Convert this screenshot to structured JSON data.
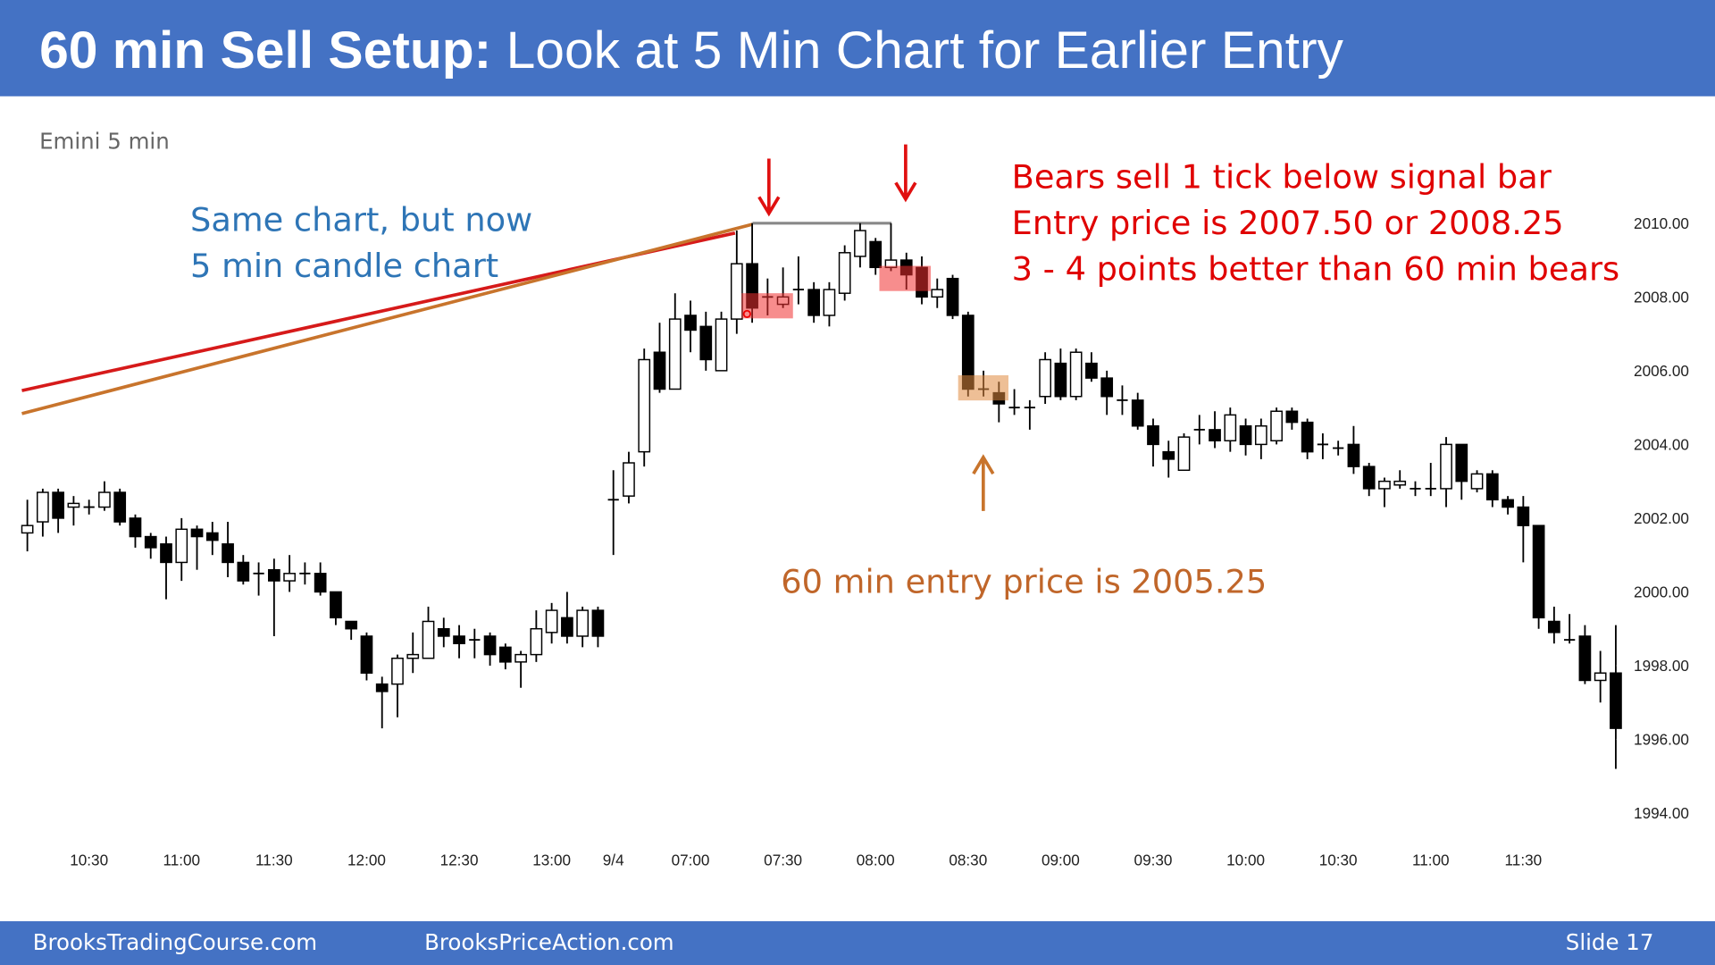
{
  "header": {
    "title_bold": "60 min Sell Setup:",
    "title_rest": "Look at 5 Min Chart for Earlier Entry"
  },
  "footer": {
    "left": "BrooksTradingCourse.com",
    "middle": "BrooksPriceAction.com",
    "right": "Slide  17"
  },
  "chart_data": {
    "type": "candlestick",
    "label": "Emini 5 min",
    "annotations": {
      "blue": [
        "Same chart, but now",
        "5 min candle chart"
      ],
      "red": [
        "Bears sell 1 tick below signal bar",
        "Entry price is 2007.50 or 2008.25",
        "3 - 4 points better than 60 min bears"
      ],
      "orange": "60 min entry price is 2005.25"
    },
    "categories": [
      null,
      null,
      null,
      null,
      "10:30",
      null,
      null,
      null,
      null,
      null,
      "11:00",
      null,
      null,
      null,
      null,
      null,
      "11:30",
      null,
      null,
      null,
      null,
      null,
      "12:00",
      null,
      null,
      null,
      null,
      null,
      "12:30",
      null,
      null,
      null,
      null,
      null,
      "13:00",
      null,
      null,
      null,
      "9/4",
      null,
      null,
      null,
      null,
      "07:00",
      null,
      null,
      null,
      null,
      null,
      "07:30",
      null,
      null,
      null,
      null,
      null,
      "08:00",
      null,
      null,
      null,
      null,
      null,
      "08:30",
      null,
      null,
      null,
      null,
      null,
      "09:00",
      null,
      null,
      null,
      null,
      null,
      "09:30",
      null,
      null,
      null,
      null,
      null,
      "10:00",
      null,
      null,
      null,
      null,
      null,
      "10:30",
      null,
      null,
      null,
      null,
      null,
      "11:00",
      null,
      null,
      null,
      null,
      null,
      "11:30",
      null,
      null,
      null,
      null,
      null,
      null
    ],
    "open": [
      2001.6,
      2001.9,
      2002.7,
      2002.3,
      2002.3,
      2002.3,
      2002.7,
      2002.0,
      2001.5,
      2001.3,
      2000.8,
      2001.7,
      2001.6,
      2001.3,
      2000.8,
      2000.5,
      2000.6,
      2000.3,
      2000.5,
      2000.5,
      2000.0,
      1999.2,
      1998.8,
      1997.5,
      1997.5,
      1998.2,
      1998.2,
      1999.0,
      1998.8,
      1998.7,
      1998.8,
      1998.5,
      1998.1,
      1998.3,
      1998.9,
      1999.3,
      1998.8,
      1999.5,
      2002.5,
      2002.6,
      2003.8,
      2006.5,
      2005.5,
      2007.5,
      2007.2,
      2006.0,
      2007.4,
      2008.9,
      2008.0,
      2007.8,
      2008.2,
      2008.2,
      2007.5,
      2008.1,
      2009.1,
      2009.5,
      2008.8,
      2009.0,
      2008.8,
      2008.0,
      2008.5,
      2007.5,
      2005.5,
      2005.4,
      2005.0,
      2005.0,
      2005.3,
      2006.2,
      2005.3,
      2006.2,
      2005.8,
      2005.2,
      2005.2,
      2004.5,
      2003.8,
      2003.3,
      2004.4,
      2004.4,
      2004.1,
      2004.5,
      2004.0,
      2004.1,
      2004.9,
      2004.6,
      2004.0,
      2003.9,
      2004.0,
      2003.4,
      2002.8,
      2002.9,
      2002.8,
      2002.8,
      2002.8,
      2004.0,
      2002.8,
      2003.2,
      2002.5,
      2002.3,
      2001.8,
      1999.2,
      1998.7,
      1998.8,
      1997.6,
      1997.8
    ],
    "high": [
      2002.5,
      2002.8,
      2002.8,
      2002.6,
      2002.5,
      2003.0,
      2002.8,
      2002.1,
      2001.6,
      2001.5,
      2002.0,
      2001.8,
      2001.9,
      2001.9,
      2001.0,
      2000.8,
      2000.9,
      2001.0,
      2000.8,
      2000.8,
      2000.0,
      1999.2,
      1998.9,
      1997.7,
      1998.3,
      1998.9,
      1999.6,
      1999.3,
      1999.1,
      1999.0,
      1998.9,
      1998.6,
      1998.4,
      1999.5,
      1999.7,
      2000.0,
      1999.6,
      1999.6,
      2003.3,
      2003.8,
      2006.6,
      2007.3,
      2008.1,
      2007.9,
      2007.6,
      2007.6,
      2009.8,
      2010.0,
      2008.5,
      2008.8,
      2009.1,
      2008.4,
      2008.4,
      2009.4,
      2010.0,
      2009.6,
      2010.0,
      2009.2,
      2009.1,
      2008.5,
      2008.6,
      2007.6,
      2006.0,
      2005.7,
      2005.5,
      2005.2,
      2006.5,
      2006.6,
      2006.6,
      2006.5,
      2006.0,
      2005.6,
      2005.4,
      2004.7,
      2004.1,
      2004.3,
      2004.8,
      2004.9,
      2005.0,
      2004.7,
      2004.7,
      2005.0,
      2005.0,
      2004.7,
      2004.3,
      2004.1,
      2004.5,
      2003.5,
      2003.1,
      2003.3,
      2003.0,
      2003.5,
      2004.2,
      2004.0,
      2003.3,
      2003.3,
      2002.6,
      2002.6,
      2001.8,
      1999.6,
      1999.4,
      1999.1,
      1998.4,
      1999.1
    ],
    "low": [
      2001.1,
      2001.5,
      2001.6,
      2001.8,
      2002.1,
      2002.2,
      2001.8,
      2001.2,
      2000.9,
      1999.8,
      2000.3,
      2000.6,
      2001.0,
      2000.4,
      2000.2,
      1999.9,
      1998.8,
      2000.0,
      2000.2,
      1999.9,
      1999.1,
      1998.7,
      1997.6,
      1996.3,
      1996.6,
      1997.8,
      1998.2,
      1998.5,
      1998.2,
      1998.2,
      1998.0,
      1997.9,
      1997.4,
      1998.1,
      1998.6,
      1998.6,
      1998.5,
      1998.5,
      2001.0,
      2002.4,
      2003.4,
      2005.4,
      2005.5,
      2006.5,
      2006.0,
      2006.0,
      2007.0,
      2007.3,
      2007.5,
      2007.7,
      2007.8,
      2007.3,
      2007.2,
      2007.9,
      2008.8,
      2008.6,
      2008.7,
      2008.2,
      2007.8,
      2007.7,
      2007.4,
      2005.3,
      2005.3,
      2004.6,
      2004.8,
      2004.4,
      2005.1,
      2005.2,
      2005.2,
      2005.7,
      2004.8,
      2004.8,
      2004.4,
      2003.4,
      2003.1,
      2003.3,
      2004.0,
      2003.9,
      2003.8,
      2003.7,
      2003.6,
      2004.0,
      2004.4,
      2003.6,
      2003.6,
      2003.7,
      2003.2,
      2002.6,
      2002.3,
      2002.8,
      2002.6,
      2002.6,
      2002.3,
      2002.5,
      2002.7,
      2002.3,
      2002.1,
      2000.8,
      1999.0,
      1998.6,
      1998.6,
      1997.5,
      1997.0,
      1995.2
    ],
    "close": [
      2001.8,
      2002.7,
      2002.0,
      2002.4,
      2002.3,
      2002.7,
      2001.9,
      2001.5,
      2001.2,
      2000.8,
      2001.7,
      2001.5,
      2001.4,
      2000.8,
      2000.3,
      2000.5,
      2000.3,
      2000.5,
      2000.5,
      2000.0,
      1999.3,
      1999.0,
      1997.8,
      1997.3,
      1998.2,
      1998.3,
      1999.2,
      1998.8,
      1998.6,
      1998.7,
      1998.3,
      1998.1,
      1998.3,
      1999.0,
      1999.5,
      1998.8,
      1999.5,
      1998.8,
      2002.5,
      2003.5,
      2006.3,
      2005.5,
      2007.4,
      2007.1,
      2006.3,
      2007.4,
      2008.9,
      2007.7,
      2008.0,
      2008.0,
      2008.2,
      2007.5,
      2008.2,
      2009.2,
      2009.8,
      2008.8,
      2009.0,
      2008.6,
      2008.0,
      2008.2,
      2007.5,
      2005.5,
      2005.5,
      2005.1,
      2005.0,
      2005.0,
      2006.3,
      2005.3,
      2006.5,
      2005.8,
      2005.3,
      2005.2,
      2004.5,
      2004.0,
      2003.6,
      2004.2,
      2004.4,
      2004.1,
      2004.8,
      2004.0,
      2004.5,
      2004.9,
      2004.6,
      2003.8,
      2004.0,
      2003.9,
      2003.4,
      2002.8,
      2003.0,
      2003.0,
      2002.8,
      2002.8,
      2004.0,
      2003.0,
      2003.2,
      2002.5,
      2002.3,
      2001.8,
      1999.3,
      1998.9,
      1998.7,
      1997.6,
      1997.8,
      1996.3
    ],
    "ylim": [
      1993.0,
      2010.5
    ],
    "yticks": [
      {
        "value": 1994,
        "label": "1994.00"
      },
      {
        "value": 1996,
        "label": "1996.00"
      },
      {
        "value": 1998,
        "label": "1998.00"
      },
      {
        "value": 2000,
        "label": "2000.00"
      },
      {
        "value": 2002,
        "label": "2002.00"
      },
      {
        "value": 2004,
        "label": "2004.00"
      },
      {
        "value": 2006,
        "label": "2006.00"
      },
      {
        "value": 2008,
        "label": "2008.00"
      },
      {
        "value": 2010,
        "label": "2010.00"
      }
    ],
    "up_color": "#ffffff",
    "down_color": "#000000"
  }
}
